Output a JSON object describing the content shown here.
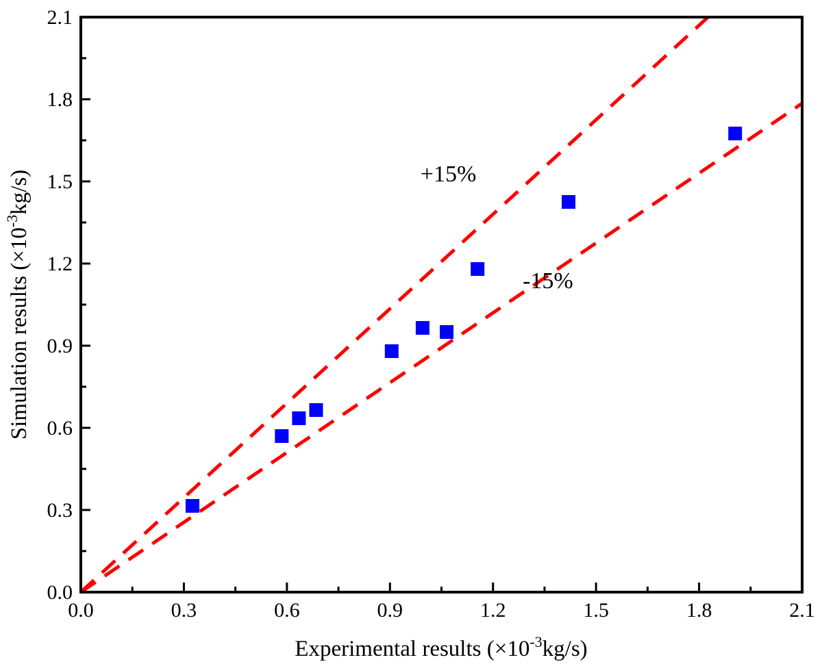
{
  "chart_data": {
    "type": "scatter",
    "title": "",
    "xlabel": {
      "main": "Experimental results (×10",
      "sup": "-3",
      "unit": "kg/s)"
    },
    "ylabel": {
      "main": "Simulation results (×10",
      "sup": "-3",
      "unit": "kg/s)"
    },
    "xlim": [
      0.0,
      2.1
    ],
    "ylim": [
      0.0,
      2.1
    ],
    "xticks": [
      "0.0",
      "0.3",
      "0.6",
      "0.9",
      "1.2",
      "1.5",
      "1.8",
      "2.1"
    ],
    "yticks": [
      "0.0",
      "0.3",
      "0.6",
      "0.9",
      "1.2",
      "1.5",
      "1.8",
      "2.1"
    ],
    "grid": false,
    "series": [
      {
        "marker": "square",
        "color": "#0000ff",
        "points": [
          {
            "x": 0.325,
            "y": 0.315
          },
          {
            "x": 0.585,
            "y": 0.57
          },
          {
            "x": 0.635,
            "y": 0.635
          },
          {
            "x": 0.685,
            "y": 0.665
          },
          {
            "x": 0.905,
            "y": 0.88
          },
          {
            "x": 0.995,
            "y": 0.965
          },
          {
            "x": 1.065,
            "y": 0.95
          },
          {
            "x": 1.155,
            "y": 1.18
          },
          {
            "x": 1.42,
            "y": 1.425
          },
          {
            "x": 1.905,
            "y": 1.675
          }
        ]
      }
    ],
    "reference_lines": [
      {
        "slope": 1.15,
        "color": "#ff0000",
        "style": "dashed"
      },
      {
        "slope": 0.85,
        "color": "#ff0000",
        "style": "dashed"
      }
    ],
    "annotations": [
      {
        "text": "+15%",
        "x": 1.07,
        "y": 1.5
      },
      {
        "text": "-15%",
        "x": 1.36,
        "y": 1.11
      }
    ]
  }
}
